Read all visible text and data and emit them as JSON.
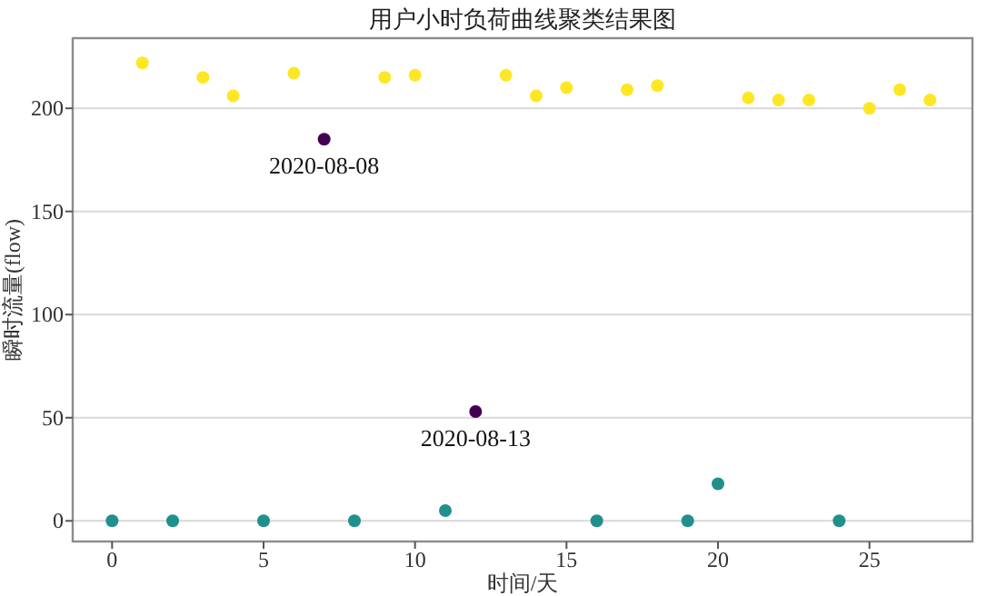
{
  "chart_data": {
    "type": "scatter",
    "title": "用户小时负荷曲线聚类结果图",
    "xlabel": "时间/天",
    "ylabel": "瞬时流量(flow)",
    "xlim": [
      -1.3,
      28.4
    ],
    "xticks": [
      0,
      5,
      10,
      15,
      20,
      25
    ],
    "ylim": [
      -10,
      234
    ],
    "yticks": [
      0,
      50,
      100,
      150,
      200
    ],
    "grid": "y",
    "marker": "circle",
    "series": [
      {
        "color": "#440154",
        "x": [
          7,
          12
        ],
        "values": [
          185,
          53
        ]
      },
      {
        "color": "#21908c",
        "x": [
          0,
          2,
          5,
          8,
          11,
          16,
          19,
          20,
          24
        ],
        "values": [
          0,
          0,
          0,
          0,
          5,
          0,
          0,
          18,
          0
        ]
      },
      {
        "color": "#fde725",
        "x": [
          1,
          3,
          4,
          6,
          9,
          10,
          13,
          14,
          15,
          17,
          18,
          21,
          22,
          23,
          25,
          26,
          27
        ],
        "values": [
          222,
          215,
          206,
          217,
          215,
          216,
          216,
          206,
          210,
          209,
          211,
          205,
          204,
          204,
          200,
          209,
          204
        ]
      }
    ],
    "annotations": [
      {
        "text": "2020-08-08",
        "x": 7,
        "y": 185
      },
      {
        "text": "2020-08-13",
        "x": 12,
        "y": 53
      }
    ]
  }
}
